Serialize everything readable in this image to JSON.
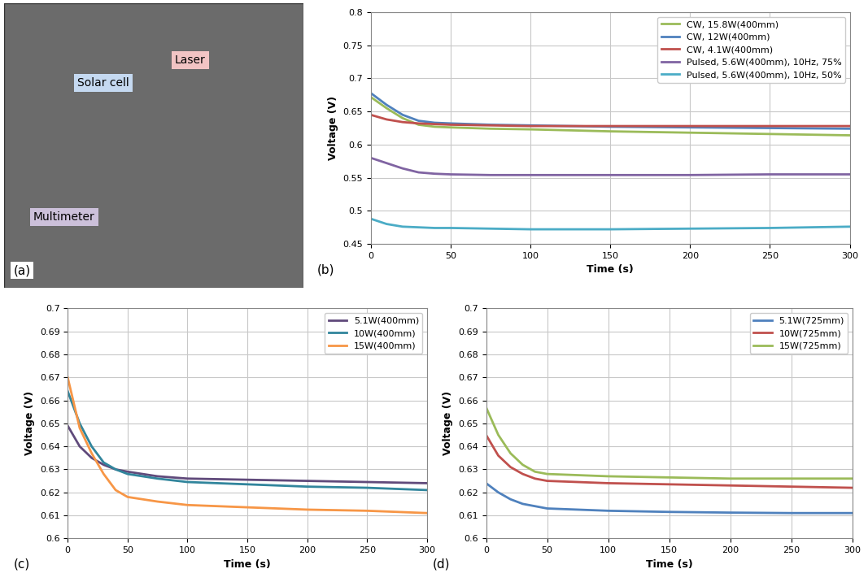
{
  "photo": {
    "panel": "(a)",
    "labels": [
      "Solar cell",
      "Laser",
      "Multimeter"
    ]
  },
  "chart_data": [
    {
      "type": "line",
      "panel": "(b)",
      "xlabel": "Time (s)",
      "ylabel": "Voltage (V)",
      "x": [
        0,
        10,
        20,
        30,
        40,
        50,
        75,
        100,
        150,
        200,
        250,
        300
      ],
      "xlim": [
        0,
        300
      ],
      "xticks": [
        0,
        50,
        100,
        150,
        200,
        250,
        300
      ],
      "ylim": [
        0.45,
        0.8
      ],
      "yticks": [
        0.45,
        0.5,
        0.55,
        0.6,
        0.65,
        0.7,
        0.75,
        0.8
      ],
      "grid": true,
      "legend": "upper right",
      "series": [
        {
          "name": "CW, 15.8W(400mm)",
          "color": "#9bbb59",
          "values": [
            0.672,
            0.655,
            0.64,
            0.63,
            0.627,
            0.626,
            0.624,
            0.623,
            0.62,
            0.618,
            0.616,
            0.614
          ]
        },
        {
          "name": "CW, 12W(400mm)",
          "color": "#4f81bd",
          "values": [
            0.678,
            0.66,
            0.645,
            0.636,
            0.633,
            0.632,
            0.63,
            0.629,
            0.627,
            0.626,
            0.625,
            0.624
          ]
        },
        {
          "name": "CW, 4.1W(400mm)",
          "color": "#c0504d",
          "values": [
            0.645,
            0.638,
            0.634,
            0.632,
            0.631,
            0.63,
            0.629,
            0.628,
            0.628,
            0.628,
            0.628,
            0.628
          ]
        },
        {
          "name": "Pulsed, 5.6W(400mm), 10Hz, 75%",
          "color": "#8064a2",
          "values": [
            0.58,
            0.572,
            0.564,
            0.558,
            0.556,
            0.555,
            0.554,
            0.554,
            0.554,
            0.554,
            0.555,
            0.555
          ]
        },
        {
          "name": "Pulsed, 5.6W(400mm), 10Hz, 50%",
          "color": "#4bacc6",
          "values": [
            0.488,
            0.48,
            0.476,
            0.475,
            0.474,
            0.474,
            0.473,
            0.472,
            0.472,
            0.473,
            0.474,
            0.476
          ]
        }
      ]
    },
    {
      "type": "line",
      "panel": "(c)",
      "xlabel": "Time (s)",
      "ylabel": "Voltage (V)",
      "x": [
        0,
        10,
        20,
        30,
        40,
        50,
        75,
        100,
        150,
        200,
        250,
        300
      ],
      "xlim": [
        0,
        300
      ],
      "xticks": [
        0,
        50,
        100,
        150,
        200,
        250,
        300
      ],
      "ylim": [
        0.6,
        0.7
      ],
      "yticks": [
        0.6,
        0.61,
        0.62,
        0.63,
        0.64,
        0.65,
        0.66,
        0.67,
        0.68,
        0.69,
        0.7
      ],
      "grid": true,
      "legend": "upper right",
      "series": [
        {
          "name": "5.1W(400mm)",
          "color": "#604a7b",
          "values": [
            0.649,
            0.64,
            0.635,
            0.632,
            0.63,
            0.629,
            0.627,
            0.626,
            0.6255,
            0.625,
            0.6245,
            0.624
          ]
        },
        {
          "name": "10W(400mm)",
          "color": "#31859c",
          "values": [
            0.664,
            0.65,
            0.64,
            0.633,
            0.63,
            0.628,
            0.626,
            0.6245,
            0.6235,
            0.6225,
            0.622,
            0.621
          ]
        },
        {
          "name": "15W(400mm)",
          "color": "#f79646",
          "values": [
            0.67,
            0.648,
            0.637,
            0.628,
            0.621,
            0.618,
            0.616,
            0.6145,
            0.6135,
            0.6125,
            0.612,
            0.611
          ]
        }
      ]
    },
    {
      "type": "line",
      "panel": "(d)",
      "xlabel": "Time (s)",
      "ylabel": "Voltage (V)",
      "x": [
        0,
        10,
        20,
        30,
        40,
        50,
        75,
        100,
        150,
        200,
        250,
        300
      ],
      "xlim": [
        0,
        300
      ],
      "xticks": [
        0,
        50,
        100,
        150,
        200,
        250,
        300
      ],
      "ylim": [
        0.6,
        0.7
      ],
      "yticks": [
        0.6,
        0.61,
        0.62,
        0.63,
        0.64,
        0.65,
        0.66,
        0.67,
        0.68,
        0.69,
        0.7
      ],
      "grid": true,
      "legend": "upper right",
      "series": [
        {
          "name": "5.1W(725mm)",
          "color": "#4f81bd",
          "values": [
            0.624,
            0.62,
            0.617,
            0.615,
            0.614,
            0.613,
            0.6125,
            0.612,
            0.6115,
            0.6112,
            0.611,
            0.611
          ]
        },
        {
          "name": "10W(725mm)",
          "color": "#c0504d",
          "values": [
            0.645,
            0.636,
            0.631,
            0.628,
            0.626,
            0.625,
            0.6245,
            0.624,
            0.6235,
            0.623,
            0.6225,
            0.622
          ]
        },
        {
          "name": "15W(725mm)",
          "color": "#9bbb59",
          "values": [
            0.657,
            0.645,
            0.637,
            0.632,
            0.629,
            0.628,
            0.6275,
            0.627,
            0.6265,
            0.626,
            0.626,
            0.626
          ]
        }
      ]
    }
  ]
}
